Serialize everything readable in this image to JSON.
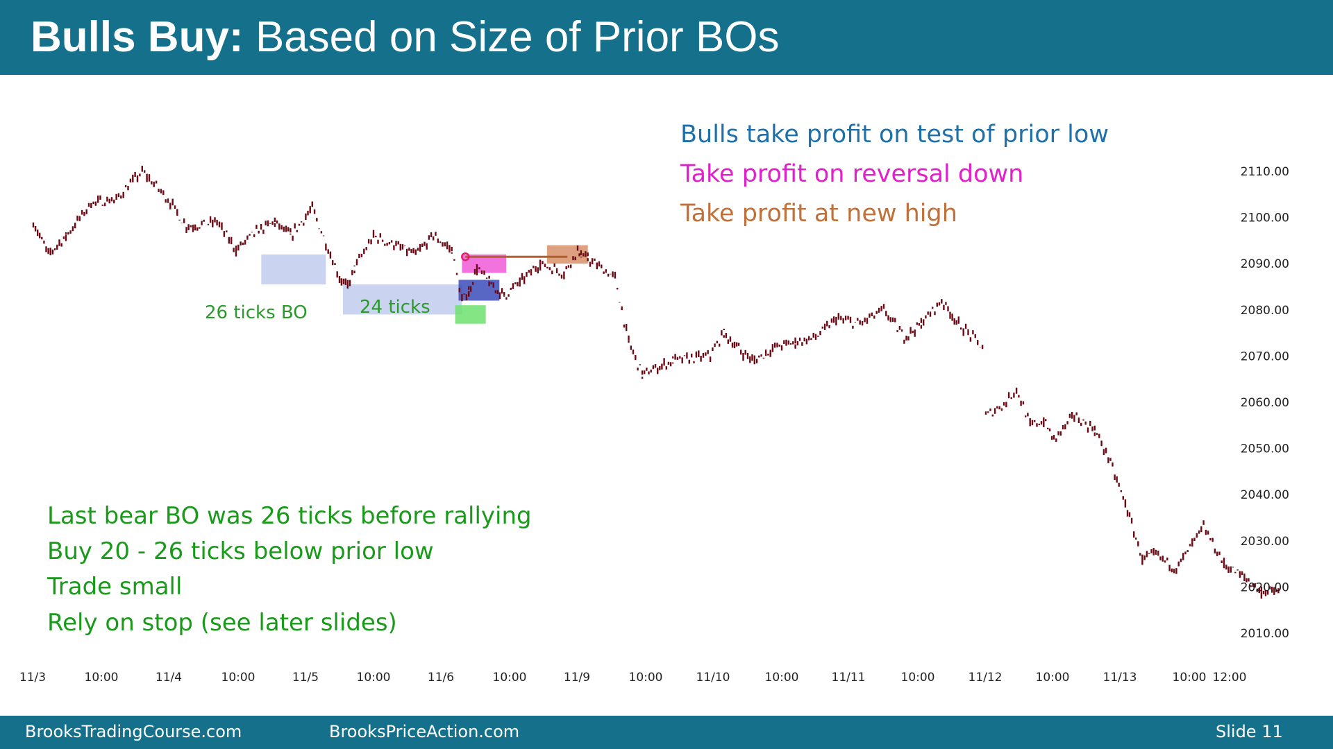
{
  "slide": {
    "title_bold": "Bulls Buy:",
    "title_rest": " Based on Size of Prior BOs",
    "footer_left": "BrooksTradingCourse.com",
    "footer_center": "BrooksPriceAction.com",
    "footer_slide": "Slide  11",
    "colors": {
      "bar": "#14708b",
      "price": "#6b0a14",
      "blue": "#1f6fa8",
      "magenta": "#e020c8",
      "brown": "#c0703a",
      "green": "#1a9a1a"
    }
  },
  "notes": {
    "blue": "Bulls take profit on test of prior low",
    "magenta": "Take profit on reversal down",
    "brown": "Take profit at new high",
    "label_26": "26 ticks BO",
    "label_24": "24 ticks",
    "lesson": [
      "Last bear BO was 26 ticks before rallying",
      "Buy 20 - 26 ticks below prior low",
      "Trade small",
      "Rely on stop (see later slides)"
    ]
  },
  "chart_data": {
    "type": "line",
    "y_ticks": [
      "2110.00",
      "2100.00",
      "2090.00",
      "2080.00",
      "2070.00",
      "2060.00",
      "2050.00",
      "2040.00",
      "2030.00",
      "2020.00",
      "2010.00"
    ],
    "ylim": [
      2007,
      2115
    ],
    "x_ticks": [
      "11/3",
      "10:00",
      "11/4",
      "10:00",
      "11/5",
      "10:00",
      "11/6",
      "10:00",
      "11/9",
      "10:00",
      "11/10",
      "10:00",
      "11/11",
      "10:00",
      "11/12",
      "10:00",
      "11/13",
      "10:00",
      "12:00"
    ],
    "series": [
      {
        "x": [
          0,
          0.22,
          0.48,
          0.85,
          1.22,
          1.6,
          1.98,
          2.25,
          2.7,
          2.98,
          3.28,
          3.55,
          3.78,
          4.1,
          4.5,
          4.62,
          4.72,
          5.0,
          5.3,
          5.62,
          5.88,
          6.15,
          6.3,
          6.4,
          6.52,
          6.7,
          6.92,
          7.15,
          7.45,
          7.8,
          8.0,
          8.05,
          8.15,
          8.55,
          8.75,
          8.95,
          9.4,
          9.95,
          10.15,
          10.4,
          10.6,
          10.9,
          11.2,
          11.5,
          11.8,
          12.15,
          12.5,
          12.8,
          13.05,
          13.35,
          13.6,
          13.95,
          14.0,
          14.3,
          14.45,
          14.65,
          14.85,
          15.0,
          15.3,
          15.6,
          15.8,
          16.05,
          16.3,
          16.5,
          16.8,
          17.2,
          17.5,
          17.8,
          18.05,
          18.3
        ],
        "values": [
          2099,
          2092,
          2096,
          2103,
          2104,
          2110,
          2104,
          2098,
          2099,
          2093,
          2097,
          2099,
          2096,
          2102,
          2087,
          2085,
          2089,
          2096,
          2094,
          2092,
          2096,
          2093,
          2082,
          2084,
          2089,
          2086,
          2083,
          2086,
          2090,
          2088,
          2093,
          2092,
          2091,
          2087,
          2073,
          2066,
          2069,
          2070,
          2075,
          2071,
          2069,
          2072,
          2073,
          2074,
          2078,
          2077,
          2080,
          2074,
          2077,
          2082,
          2077,
          2072,
          2057,
          2060,
          2063,
          2055,
          2056,
          2052,
          2057,
          2054,
          2048,
          2038,
          2026,
          2027,
          2024,
          2033,
          2025,
          2022,
          2019,
          2019
        ]
      }
    ],
    "annotations": [
      {
        "label": "26 ticks BO",
        "from": [
          3.35,
          2092
        ],
        "to": [
          4.3,
          2085.5
        ]
      },
      {
        "label": "24 ticks",
        "from": [
          4.55,
          2085.5
        ],
        "to": [
          6.3,
          2079
        ]
      },
      {
        "label": "buy zone",
        "from": [
          6.2,
          2081
        ],
        "to": [
          6.65,
          2077
        ]
      },
      {
        "label": "blue target",
        "from": [
          6.25,
          2086.5
        ],
        "to": [
          6.85,
          2082
        ]
      },
      {
        "label": "magenta target",
        "from": [
          6.3,
          2092
        ],
        "to": [
          6.95,
          2088
        ]
      },
      {
        "label": "brown target",
        "from": [
          7.55,
          2094
        ],
        "to": [
          8.15,
          2090
        ]
      }
    ],
    "grid": false
  }
}
